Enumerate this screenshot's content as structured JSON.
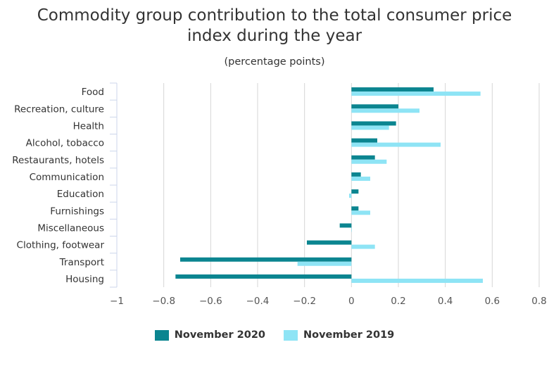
{
  "chart_data": {
    "type": "bar",
    "orientation": "horizontal",
    "title_line1": "Commodity group contribution to the total consumer price",
    "title_line2": "index during the year",
    "subtitle": "(percentage points)",
    "categories": [
      "Food",
      "Recreation, culture",
      "Health",
      "Alcohol, tobacco",
      "Restaurants, hotels",
      "Communication",
      "Education",
      "Furnishings",
      "Miscellaneous",
      "Clothing, footwear",
      "Transport",
      "Housing"
    ],
    "series": [
      {
        "name": "November 2020",
        "color": "#0b8590",
        "values": [
          0.35,
          0.2,
          0.19,
          0.11,
          0.1,
          0.04,
          0.03,
          0.03,
          -0.05,
          -0.19,
          -0.73,
          -0.75
        ]
      },
      {
        "name": "November 2019",
        "color": "#8ee4f5",
        "values": [
          0.55,
          0.29,
          0.16,
          0.38,
          0.15,
          0.08,
          -0.01,
          0.08,
          0.0,
          0.1,
          -0.23,
          0.56
        ]
      }
    ],
    "xlim": [
      -1,
      0.8
    ],
    "xticks": [
      -1,
      -0.8,
      -0.6,
      -0.4,
      -0.2,
      0,
      0.2,
      0.4,
      0.6,
      0.8
    ],
    "xtick_labels": [
      "−1",
      "−0.8",
      "−0.6",
      "−0.4",
      "−0.2",
      "0",
      "0.2",
      "0.4",
      "0.6",
      "0.8"
    ],
    "grid": true,
    "legend_position": "bottom"
  }
}
